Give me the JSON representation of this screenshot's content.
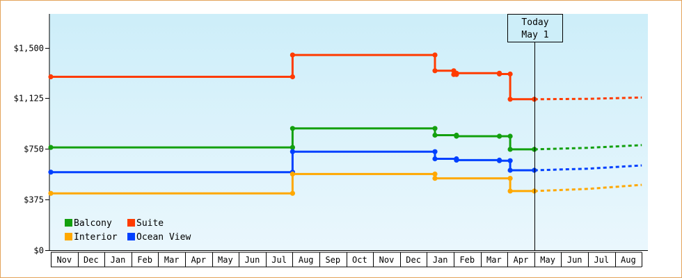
{
  "chart_data": {
    "type": "line",
    "style": "step",
    "x_axis": {
      "type": "month",
      "ticks": [
        "Nov",
        "Dec",
        "Jan",
        "Feb",
        "Mar",
        "Apr",
        "May",
        "Jun",
        "Jul",
        "Aug",
        "Sep",
        "Oct",
        "Nov",
        "Dec",
        "Jan",
        "Feb",
        "Mar",
        "Apr",
        "May",
        "Jun",
        "Jul",
        "Aug"
      ],
      "range_months": [
        0,
        22
      ]
    },
    "y_axis": {
      "ticks": [
        0,
        375,
        750,
        1125,
        1500
      ],
      "tick_labels": [
        "$0",
        "$375",
        "$750",
        "$1,125",
        "$1,500"
      ],
      "ylim": [
        0,
        1750
      ]
    },
    "marker": {
      "label_lines": [
        "Today",
        "May 1"
      ],
      "x": 18.0
    },
    "legend": {
      "placement": "bottom-left",
      "entries": [
        "Balcony",
        "Suite",
        "Interior",
        "Ocean View"
      ]
    },
    "colors": {
      "plot_bg_top": "#cdeef9",
      "plot_bg_bottom": "#eaf7fd",
      "border": "#e3a35a"
    },
    "series": [
      {
        "name": "Suite",
        "color": "#ff3b00",
        "points": [
          [
            0.0,
            1284
          ],
          [
            9.0,
            1284
          ],
          [
            9.0,
            1446
          ],
          [
            14.3,
            1446
          ],
          [
            14.3,
            1329
          ],
          [
            15.0,
            1329
          ],
          [
            15.0,
            1301
          ],
          [
            15.1,
            1301
          ],
          [
            15.1,
            1311
          ],
          [
            16.7,
            1311
          ],
          [
            16.7,
            1305
          ],
          [
            17.1,
            1305
          ],
          [
            17.1,
            1118
          ],
          [
            18.0,
            1118
          ]
        ],
        "forecast": [
          [
            18.0,
            1118
          ],
          [
            20.0,
            1121
          ],
          [
            22.0,
            1131
          ]
        ]
      },
      {
        "name": "Balcony",
        "color": "#13a00e",
        "points": [
          [
            0.0,
            761
          ],
          [
            9.0,
            761
          ],
          [
            9.0,
            902
          ],
          [
            14.3,
            902
          ],
          [
            14.3,
            852
          ],
          [
            15.1,
            852
          ],
          [
            15.1,
            844
          ],
          [
            16.7,
            844
          ],
          [
            16.7,
            844
          ],
          [
            17.1,
            844
          ],
          [
            17.1,
            747
          ],
          [
            18.0,
            747
          ]
        ],
        "forecast": [
          [
            18.0,
            747
          ],
          [
            20.0,
            758
          ],
          [
            22.0,
            778
          ]
        ]
      },
      {
        "name": "Ocean View",
        "color": "#0040ff",
        "points": [
          [
            0.0,
            578
          ],
          [
            9.0,
            578
          ],
          [
            9.0,
            730
          ],
          [
            14.3,
            730
          ],
          [
            14.3,
            677
          ],
          [
            15.1,
            677
          ],
          [
            15.1,
            667
          ],
          [
            16.7,
            667
          ],
          [
            16.7,
            663
          ],
          [
            17.1,
            663
          ],
          [
            17.1,
            592
          ],
          [
            18.0,
            592
          ]
        ],
        "forecast": [
          [
            18.0,
            592
          ],
          [
            20.0,
            604
          ],
          [
            22.0,
            628
          ]
        ]
      },
      {
        "name": "Interior",
        "color": "#ffa800",
        "points": [
          [
            0.0,
            421
          ],
          [
            9.0,
            421
          ],
          [
            9.0,
            564
          ],
          [
            14.3,
            564
          ],
          [
            14.3,
            532
          ],
          [
            17.1,
            532
          ],
          [
            17.1,
            438
          ],
          [
            18.0,
            438
          ]
        ],
        "forecast": [
          [
            18.0,
            438
          ],
          [
            20.0,
            454
          ],
          [
            22.0,
            484
          ]
        ]
      }
    ]
  }
}
